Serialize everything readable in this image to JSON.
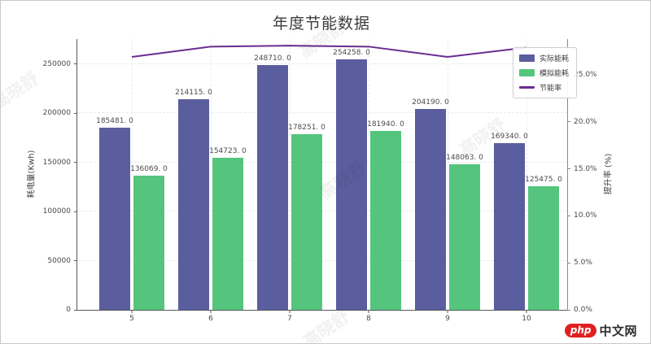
{
  "page": {
    "background": "#ffffff",
    "border_color": "#c9c9c9"
  },
  "watermark": {
    "text": "高晓舒"
  },
  "logo": {
    "pill": "php",
    "suffix": "中文网"
  },
  "chart_data": {
    "type": "bar",
    "title": "年度节能数据",
    "categories": [
      "5",
      "6",
      "7",
      "8",
      "9",
      "10"
    ],
    "series": [
      {
        "name": "实际能耗",
        "kind": "bar",
        "color": "#5a5e9e",
        "values": [
          185481,
          214115,
          248710,
          254258,
          204190,
          169340
        ],
        "labels": [
          "185481. 0",
          "214115. 0",
          "248710. 0",
          "254258. 0",
          "204190. 0",
          "169340. 0"
        ]
      },
      {
        "name": "模拟能耗",
        "kind": "bar",
        "color": "#55c57e",
        "values": [
          136069,
          154723,
          178251,
          181940,
          148063,
          125475
        ],
        "labels": [
          "136069. 0",
          "154723. 0",
          "178251. 0",
          "181940. 0",
          "148063. 0",
          "125475. 0"
        ]
      },
      {
        "name": "节能率",
        "kind": "line",
        "color": "#6a2c8f",
        "values_pct": [
          26.9,
          28.0,
          28.1,
          28.0,
          26.9,
          27.9
        ]
      }
    ],
    "left_axis": {
      "label": "耗电量(Kwh)",
      "tick_values": [
        0,
        50000,
        100000,
        150000,
        200000,
        250000
      ],
      "tick_labels": [
        "0",
        "50000",
        "100000",
        "150000",
        "200000",
        "250000"
      ],
      "ylim": [
        0,
        275000
      ]
    },
    "right_axis": {
      "label": "提升率 (%)",
      "tick_values": [
        0,
        5,
        10,
        15,
        20,
        25
      ],
      "tick_labels": [
        "0.0%",
        "5.0%",
        "10.0%",
        "15.0%",
        "20.0%",
        "25.0%"
      ],
      "ylim": [
        0,
        28.8
      ]
    },
    "legend": [
      "实际能耗",
      "模拟能耗",
      "节能率"
    ],
    "grid": true,
    "legend_position": "upper-right"
  }
}
